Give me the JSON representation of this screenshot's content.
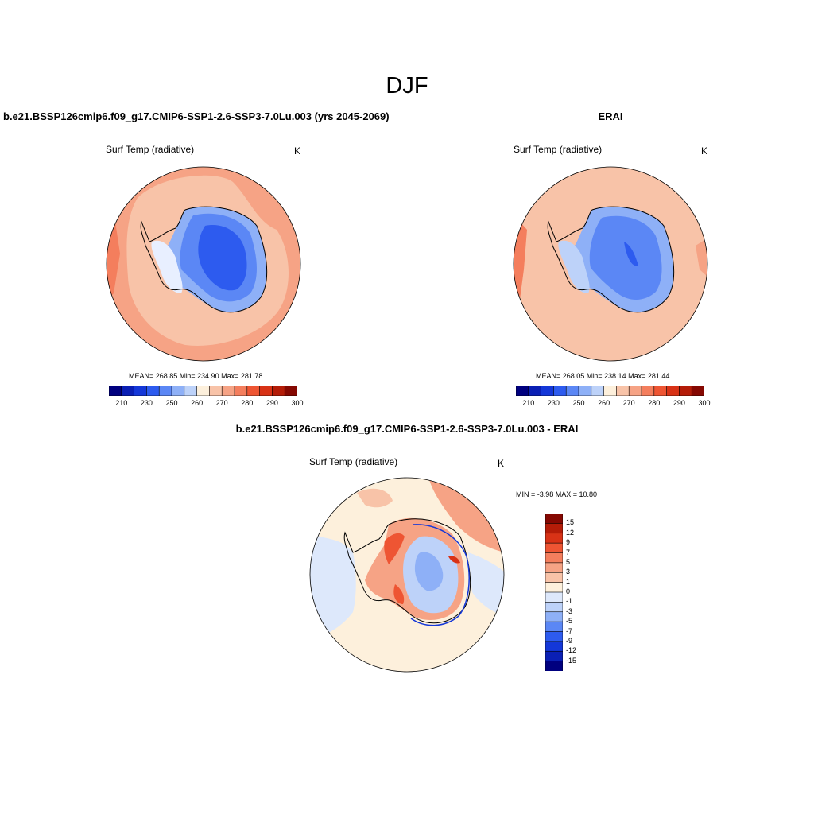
{
  "figure": {
    "title": "DJF",
    "variable": "Surf Temp (radiative)",
    "units": "K"
  },
  "panels": {
    "model": {
      "title": "b.e21.BSSP126cmip6.f09_g17.CMIP6-SSP1-2.6-SSP3-7.0Lu.003 (yrs 2045-2069)",
      "stats": "MEAN= 268.85  Min= 234.90  Max= 281.78"
    },
    "obs": {
      "title": "ERAI",
      "stats": "MEAN= 268.05  Min= 238.14  Max= 281.44"
    },
    "diff": {
      "title": "b.e21.BSSP126cmip6.f09_g17.CMIP6-SSP1-2.6-SSP3-7.0Lu.003 - ERAI",
      "stats": "MIN =  -3.98 MAX =  10.80"
    }
  },
  "colorbars": {
    "absolute": {
      "ticks": [
        "210",
        "230",
        "250",
        "260",
        "270",
        "280",
        "290",
        "300"
      ],
      "colors": [
        "#00007f",
        "#0a1fb4",
        "#1437d8",
        "#2d5bef",
        "#5b87f5",
        "#8eb0f7",
        "#bdd2f9",
        "#fdf0dc",
        "#f8c3a8",
        "#f6a385",
        "#f47e5d",
        "#ee5533",
        "#d83216",
        "#b41c08",
        "#850802"
      ]
    },
    "difference": {
      "ticks": [
        "15",
        "12",
        "9",
        "7",
        "5",
        "3",
        "1",
        "0",
        "-1",
        "-3",
        "-5",
        "-7",
        "-9",
        "-12",
        "-15"
      ],
      "colors": [
        "#850802",
        "#b41c08",
        "#d83216",
        "#ee5533",
        "#f47e5d",
        "#f6a385",
        "#f8c3a8",
        "#fdf0dc",
        "#dde8fb",
        "#bdd2f9",
        "#8eb0f7",
        "#5b87f5",
        "#2d5bef",
        "#1437d8",
        "#0a1fb4",
        "#00007f"
      ]
    }
  }
}
